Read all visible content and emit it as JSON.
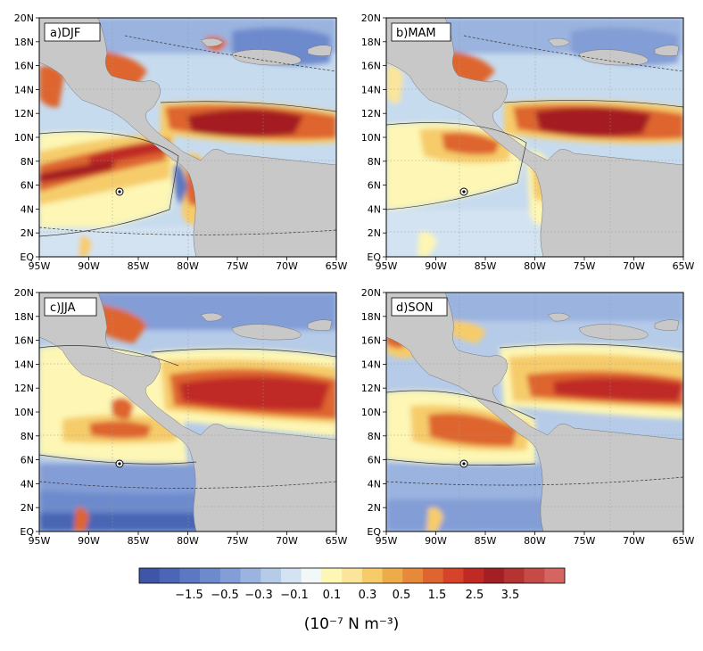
{
  "panels": [
    {
      "label": "a)DJF"
    },
    {
      "label": "b)MAM"
    },
    {
      "label": "c)JJA"
    },
    {
      "label": "d)SON"
    }
  ],
  "axes": {
    "x_ticks": [
      "95W",
      "90W",
      "85W",
      "80W",
      "75W",
      "70W",
      "65W"
    ],
    "y_ticks": [
      "EQ",
      "2N",
      "4N",
      "6N",
      "8N",
      "10N",
      "12N",
      "14N",
      "16N",
      "18N",
      "20N"
    ]
  },
  "colorbar": {
    "tick_labels": [
      "−1.5",
      "−0.5",
      "−0.3",
      "−0.1",
      "0.1",
      "0.3",
      "0.5",
      "1.5",
      "2.5",
      "3.5"
    ],
    "colors": [
      "#3e56a5",
      "#4a66b5",
      "#5b78c2",
      "#6d8acc",
      "#839dd6",
      "#9ab3df",
      "#b6cbe8",
      "#d3e3f1",
      "#f2f7f7",
      "#fdf6b4",
      "#fbe59a",
      "#f6cc6a",
      "#eeab4a",
      "#e6893a",
      "#de652f",
      "#d4432a",
      "#c02a25",
      "#a41f22",
      "#b53330",
      "#c64a46",
      "#d46560"
    ]
  },
  "units": "(10⁻⁷ N m⁻³)"
}
